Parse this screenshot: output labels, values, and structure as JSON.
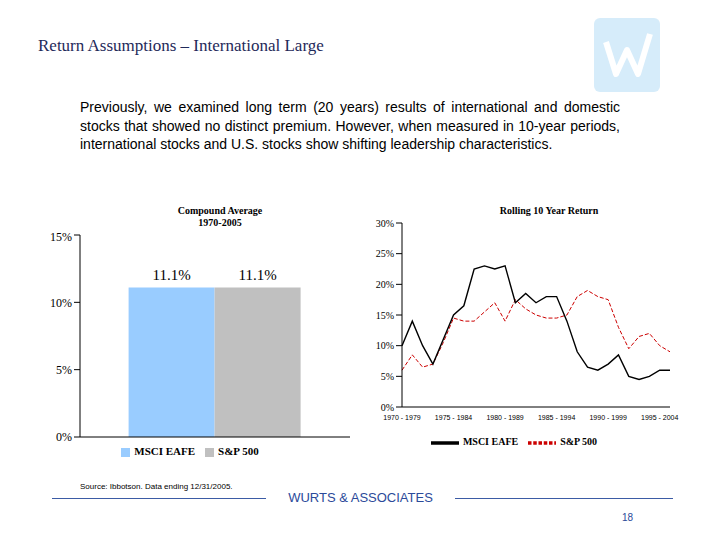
{
  "header": {
    "title": "Return Assumptions – International Large"
  },
  "body": {
    "text": "Previously, we examined long term (20 years) results of international and domestic stocks that showed no distinct premium. However, when measured in 10-year periods, international stocks and U.S. stocks show shifting leadership characteristics."
  },
  "chart_data": [
    {
      "type": "bar",
      "title": "Compound Average",
      "subtitle": "1970-2005",
      "categories": [
        null
      ],
      "series": [
        {
          "name": "MSCI EAFE",
          "color": "#99ccff",
          "values": [
            11.1
          ],
          "value_labels": [
            "11.1%"
          ]
        },
        {
          "name": "S&P 500",
          "color": "#c0c0c0",
          "values": [
            11.1
          ],
          "value_labels": [
            "11.1%"
          ]
        }
      ],
      "ylim": [
        0,
        15
      ],
      "yticks": [
        {
          "value": 0,
          "label": "0%"
        },
        {
          "value": 5,
          "label": "5%"
        },
        {
          "value": 10,
          "label": "10%"
        },
        {
          "value": 15,
          "label": "15%"
        }
      ],
      "data_labels": true,
      "legend": "bottom",
      "grid": false,
      "tick_labels": "y"
    },
    {
      "type": "line",
      "title": "Rolling 10 Year Return",
      "categories": [
        "1970 - 1979",
        null,
        null,
        null,
        null,
        "1975 - 1984",
        null,
        null,
        null,
        null,
        "1980 - 1989",
        null,
        null,
        null,
        null,
        "1985 - 1994",
        null,
        null,
        null,
        null,
        "1990 - 1999",
        null,
        null,
        null,
        null,
        "1995 - 2004",
        null
      ],
      "series": [
        {
          "name": "S&P 500",
          "color": "#cc0000",
          "line_style": "dashed",
          "marker": "none",
          "values": [
            6,
            8.5,
            6.5,
            7,
            10.5,
            14.5,
            14,
            14,
            15.5,
            17,
            14,
            17.5,
            16,
            15,
            14.5,
            14.5,
            15,
            18,
            19,
            18,
            17.5,
            13,
            9.5,
            11.5,
            12,
            10,
            9
          ]
        },
        {
          "name": "MSCI EAFE",
          "color": "#000000",
          "line_style": "solid",
          "marker": "none",
          "values": [
            10,
            14,
            10,
            7,
            11,
            15,
            16.5,
            22.5,
            23,
            22.5,
            23,
            17,
            18.5,
            17,
            18,
            18,
            14,
            9,
            6.5,
            6,
            7,
            8.5,
            5,
            4.5,
            5,
            6,
            6
          ]
        }
      ],
      "ylim": [
        0,
        30
      ],
      "yticks": [
        {
          "value": 0,
          "label": "0%"
        },
        {
          "value": 5,
          "label": "5%"
        },
        {
          "value": 10,
          "label": "10%"
        },
        {
          "value": 15,
          "label": "15%"
        },
        {
          "value": 20,
          "label": "20%"
        },
        {
          "value": 25,
          "label": "25%"
        },
        {
          "value": 30,
          "label": "30%"
        }
      ],
      "legend": "bottom",
      "grid": false
    }
  ],
  "footer": {
    "source": "Source: Ibbotson. Data ending 12/31/2005.",
    "company": "WURTS & ASSOCIATES",
    "page": 18
  }
}
